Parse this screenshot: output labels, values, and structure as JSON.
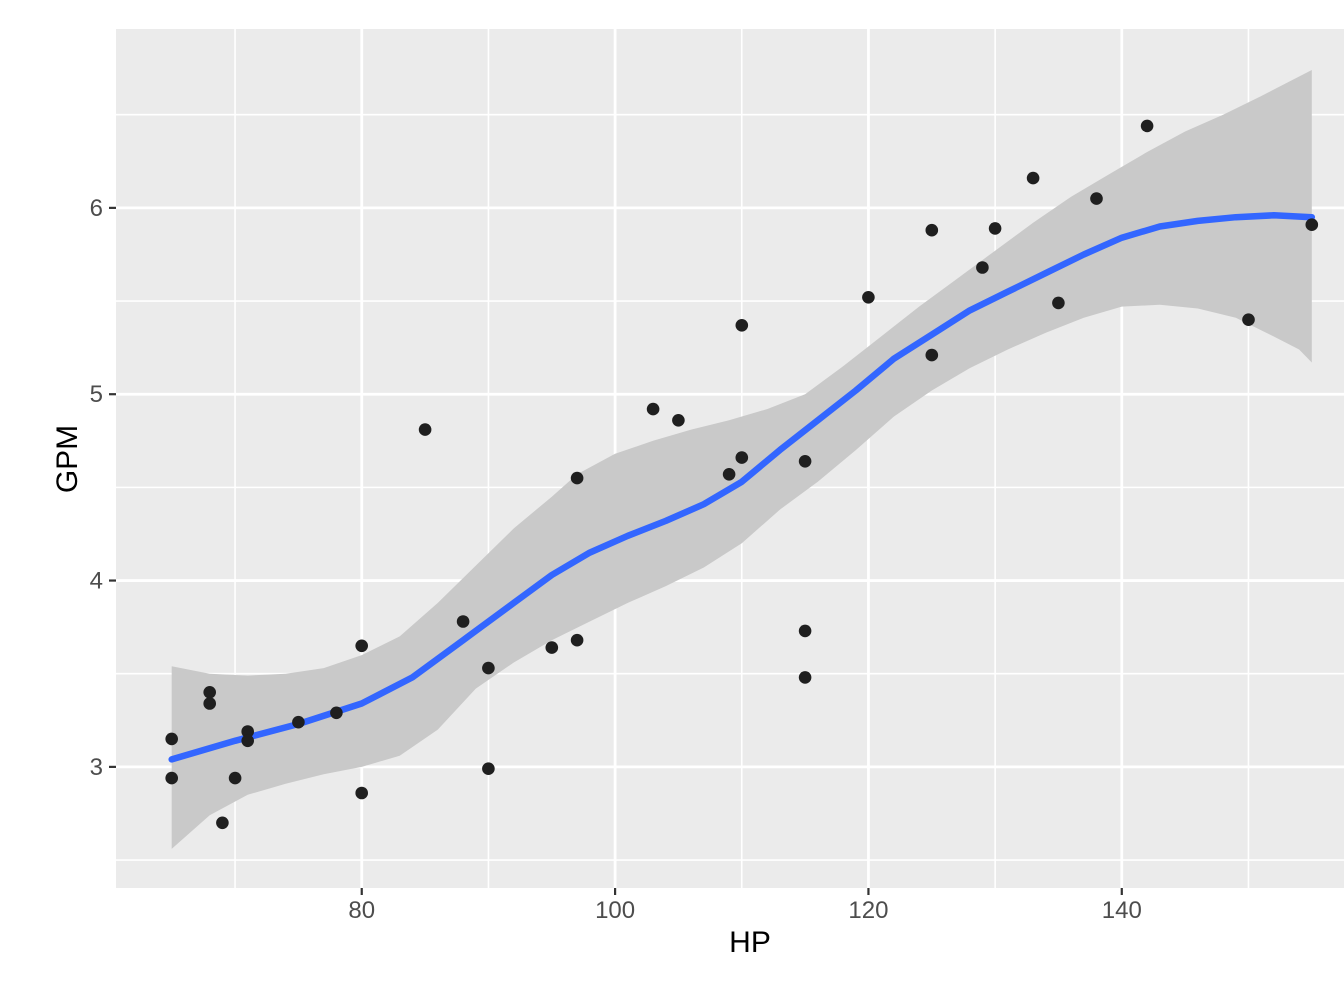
{
  "chart_data": {
    "type": "scatter",
    "title": "",
    "xlabel": "HP",
    "ylabel": "GPM",
    "legend_position": "none",
    "grid": true,
    "x_ticks": [
      80,
      100,
      120,
      140
    ],
    "x_minor_ticks": [
      70,
      90,
      110,
      130,
      150,
      160
    ],
    "y_ticks": [
      3,
      4,
      5,
      6
    ],
    "y_minor_ticks": [
      2.5,
      3.5,
      4.5,
      5.5,
      6.5
    ],
    "x_domain": [
      60.6,
      160.7
    ],
    "y_domain": [
      2.35,
      6.96
    ],
    "points": [
      [
        65,
        3.15
      ],
      [
        65,
        2.94
      ],
      [
        68,
        3.4
      ],
      [
        68,
        3.34
      ],
      [
        69,
        2.7
      ],
      [
        70,
        2.94
      ],
      [
        71,
        3.19
      ],
      [
        71,
        3.14
      ],
      [
        75,
        3.24
      ],
      [
        78,
        3.29
      ],
      [
        80,
        3.65
      ],
      [
        80,
        2.86
      ],
      [
        85,
        4.81
      ],
      [
        88,
        3.78
      ],
      [
        90,
        3.53
      ],
      [
        90,
        2.99
      ],
      [
        95,
        3.64
      ],
      [
        97,
        4.55
      ],
      [
        97,
        3.68
      ],
      [
        103,
        4.92
      ],
      [
        105,
        4.86
      ],
      [
        109,
        4.57
      ],
      [
        110,
        4.66
      ],
      [
        110,
        5.37
      ],
      [
        115,
        4.64
      ],
      [
        115,
        3.73
      ],
      [
        115,
        3.48
      ],
      [
        120,
        5.52
      ],
      [
        125,
        5.21
      ],
      [
        125,
        5.88
      ],
      [
        129,
        5.68
      ],
      [
        130,
        5.89
      ],
      [
        133,
        6.16
      ],
      [
        135,
        5.49
      ],
      [
        138,
        6.05
      ],
      [
        142,
        6.44
      ],
      [
        150,
        5.4
      ],
      [
        155,
        5.91
      ]
    ],
    "smooth_line": [
      [
        65,
        3.04
      ],
      [
        70,
        3.14
      ],
      [
        75,
        3.23
      ],
      [
        80,
        3.34
      ],
      [
        84,
        3.48
      ],
      [
        88,
        3.68
      ],
      [
        92,
        3.88
      ],
      [
        95,
        4.03
      ],
      [
        98,
        4.15
      ],
      [
        101,
        4.24
      ],
      [
        104,
        4.32
      ],
      [
        107,
        4.41
      ],
      [
        110,
        4.53
      ],
      [
        113,
        4.7
      ],
      [
        116,
        4.86
      ],
      [
        119,
        5.02
      ],
      [
        122,
        5.19
      ],
      [
        125,
        5.32
      ],
      [
        128,
        5.45
      ],
      [
        131,
        5.55
      ],
      [
        134,
        5.65
      ],
      [
        137,
        5.75
      ],
      [
        140,
        5.84
      ],
      [
        143,
        5.9
      ],
      [
        146,
        5.93
      ],
      [
        149,
        5.95
      ],
      [
        152,
        5.96
      ],
      [
        155,
        5.95
      ]
    ],
    "ci_upper": [
      [
        65,
        3.54
      ],
      [
        68,
        3.5
      ],
      [
        71,
        3.49
      ],
      [
        74,
        3.5
      ],
      [
        77,
        3.53
      ],
      [
        80,
        3.6
      ],
      [
        83,
        3.7
      ],
      [
        86,
        3.88
      ],
      [
        89,
        4.08
      ],
      [
        92,
        4.28
      ],
      [
        95,
        4.45
      ],
      [
        97,
        4.57
      ],
      [
        100,
        4.68
      ],
      [
        103,
        4.75
      ],
      [
        106,
        4.81
      ],
      [
        109,
        4.86
      ],
      [
        112,
        4.92
      ],
      [
        115,
        5.0
      ],
      [
        118,
        5.15
      ],
      [
        121,
        5.31
      ],
      [
        124,
        5.47
      ],
      [
        127,
        5.62
      ],
      [
        130,
        5.77
      ],
      [
        133,
        5.92
      ],
      [
        136,
        6.06
      ],
      [
        139,
        6.18
      ],
      [
        142,
        6.3
      ],
      [
        145,
        6.41
      ],
      [
        148,
        6.5
      ],
      [
        151,
        6.6
      ],
      [
        153,
        6.67
      ],
      [
        155,
        6.74
      ]
    ],
    "ci_lower": [
      [
        65,
        2.56
      ],
      [
        68,
        2.74
      ],
      [
        71,
        2.85
      ],
      [
        74,
        2.91
      ],
      [
        77,
        2.96
      ],
      [
        80,
        3.0
      ],
      [
        83,
        3.06
      ],
      [
        86,
        3.2
      ],
      [
        89,
        3.42
      ],
      [
        92,
        3.56
      ],
      [
        95,
        3.68
      ],
      [
        98,
        3.78
      ],
      [
        101,
        3.88
      ],
      [
        104,
        3.97
      ],
      [
        107,
        4.07
      ],
      [
        110,
        4.2
      ],
      [
        113,
        4.38
      ],
      [
        116,
        4.53
      ],
      [
        119,
        4.7
      ],
      [
        122,
        4.88
      ],
      [
        125,
        5.02
      ],
      [
        128,
        5.14
      ],
      [
        131,
        5.24
      ],
      [
        134,
        5.33
      ],
      [
        137,
        5.41
      ],
      [
        140,
        5.47
      ],
      [
        143,
        5.48
      ],
      [
        146,
        5.46
      ],
      [
        149,
        5.41
      ],
      [
        152,
        5.31
      ],
      [
        154,
        5.24
      ],
      [
        155,
        5.17
      ]
    ]
  },
  "style": {
    "panel_bg": "#EBEBEB",
    "page_bg": "#FFFFFF",
    "grid_color": "#FFFFFF",
    "band_color": "#C9C9C9",
    "line_color": "#3366FF",
    "point_color": "#1F1F1F",
    "tick_label_color": "#4D4D4D",
    "tick_mark_color": "#333333",
    "axis_title_color": "#000000"
  }
}
